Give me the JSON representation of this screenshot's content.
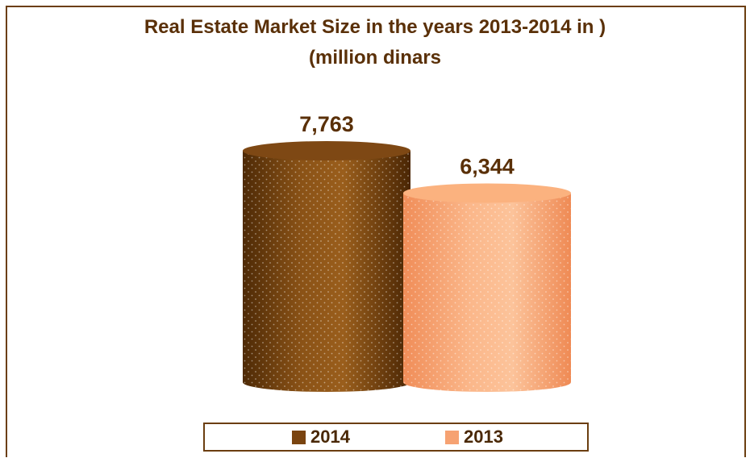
{
  "chart_data": {
    "type": "bar",
    "style": "3d-cylinder",
    "title": "Real Estate Market Size in the years 2013-2014 in )",
    "subtitle": "(million dinars",
    "categories": [
      "2014",
      "2013"
    ],
    "values": [
      7763,
      6344
    ],
    "data_labels": [
      "7,763",
      "6,344"
    ],
    "colors": [
      "#7a4410",
      "#f6a272"
    ],
    "legend": {
      "placement": "bottom",
      "entries": [
        {
          "label": "2014",
          "color": "#7a4410"
        },
        {
          "label": "2013",
          "color": "#f6a272"
        }
      ]
    },
    "grid": false,
    "axes_visible": false
  }
}
